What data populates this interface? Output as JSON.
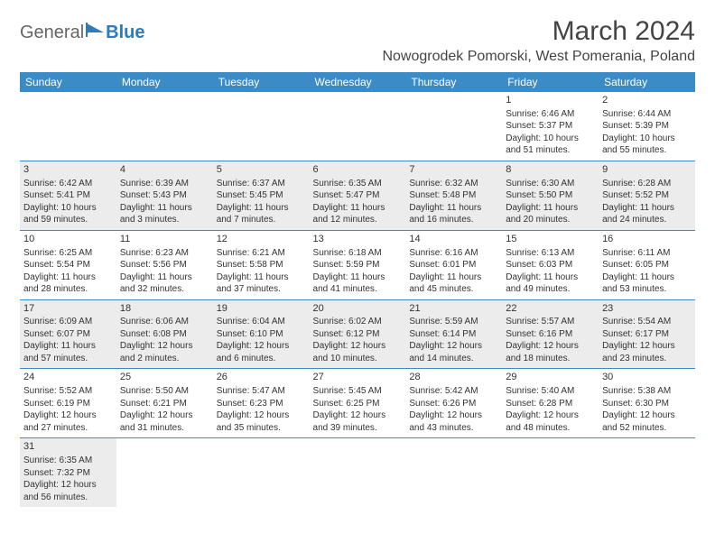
{
  "brand": {
    "part1": "General",
    "part2": "Blue"
  },
  "title": "March 2024",
  "location": "Nowogrodek Pomorski, West Pomerania, Poland",
  "colors": {
    "header_bg": "#3b8bc6",
    "header_text": "#ffffff",
    "row_shade": "#ececec",
    "cell_border": "#3b8bc6",
    "text": "#333333",
    "logo_blue": "#2b7bbf"
  },
  "weekdays": [
    "Sunday",
    "Monday",
    "Tuesday",
    "Wednesday",
    "Thursday",
    "Friday",
    "Saturday"
  ],
  "weeks": [
    {
      "shaded": false,
      "days": [
        null,
        null,
        null,
        null,
        null,
        {
          "n": "1",
          "sr": "Sunrise: 6:46 AM",
          "ss": "Sunset: 5:37 PM",
          "d1": "Daylight: 10 hours",
          "d2": "and 51 minutes."
        },
        {
          "n": "2",
          "sr": "Sunrise: 6:44 AM",
          "ss": "Sunset: 5:39 PM",
          "d1": "Daylight: 10 hours",
          "d2": "and 55 minutes."
        }
      ]
    },
    {
      "shaded": true,
      "days": [
        {
          "n": "3",
          "sr": "Sunrise: 6:42 AM",
          "ss": "Sunset: 5:41 PM",
          "d1": "Daylight: 10 hours",
          "d2": "and 59 minutes."
        },
        {
          "n": "4",
          "sr": "Sunrise: 6:39 AM",
          "ss": "Sunset: 5:43 PM",
          "d1": "Daylight: 11 hours",
          "d2": "and 3 minutes."
        },
        {
          "n": "5",
          "sr": "Sunrise: 6:37 AM",
          "ss": "Sunset: 5:45 PM",
          "d1": "Daylight: 11 hours",
          "d2": "and 7 minutes."
        },
        {
          "n": "6",
          "sr": "Sunrise: 6:35 AM",
          "ss": "Sunset: 5:47 PM",
          "d1": "Daylight: 11 hours",
          "d2": "and 12 minutes."
        },
        {
          "n": "7",
          "sr": "Sunrise: 6:32 AM",
          "ss": "Sunset: 5:48 PM",
          "d1": "Daylight: 11 hours",
          "d2": "and 16 minutes."
        },
        {
          "n": "8",
          "sr": "Sunrise: 6:30 AM",
          "ss": "Sunset: 5:50 PM",
          "d1": "Daylight: 11 hours",
          "d2": "and 20 minutes."
        },
        {
          "n": "9",
          "sr": "Sunrise: 6:28 AM",
          "ss": "Sunset: 5:52 PM",
          "d1": "Daylight: 11 hours",
          "d2": "and 24 minutes."
        }
      ]
    },
    {
      "shaded": false,
      "days": [
        {
          "n": "10",
          "sr": "Sunrise: 6:25 AM",
          "ss": "Sunset: 5:54 PM",
          "d1": "Daylight: 11 hours",
          "d2": "and 28 minutes."
        },
        {
          "n": "11",
          "sr": "Sunrise: 6:23 AM",
          "ss": "Sunset: 5:56 PM",
          "d1": "Daylight: 11 hours",
          "d2": "and 32 minutes."
        },
        {
          "n": "12",
          "sr": "Sunrise: 6:21 AM",
          "ss": "Sunset: 5:58 PM",
          "d1": "Daylight: 11 hours",
          "d2": "and 37 minutes."
        },
        {
          "n": "13",
          "sr": "Sunrise: 6:18 AM",
          "ss": "Sunset: 5:59 PM",
          "d1": "Daylight: 11 hours",
          "d2": "and 41 minutes."
        },
        {
          "n": "14",
          "sr": "Sunrise: 6:16 AM",
          "ss": "Sunset: 6:01 PM",
          "d1": "Daylight: 11 hours",
          "d2": "and 45 minutes."
        },
        {
          "n": "15",
          "sr": "Sunrise: 6:13 AM",
          "ss": "Sunset: 6:03 PM",
          "d1": "Daylight: 11 hours",
          "d2": "and 49 minutes."
        },
        {
          "n": "16",
          "sr": "Sunrise: 6:11 AM",
          "ss": "Sunset: 6:05 PM",
          "d1": "Daylight: 11 hours",
          "d2": "and 53 minutes."
        }
      ]
    },
    {
      "shaded": true,
      "days": [
        {
          "n": "17",
          "sr": "Sunrise: 6:09 AM",
          "ss": "Sunset: 6:07 PM",
          "d1": "Daylight: 11 hours",
          "d2": "and 57 minutes."
        },
        {
          "n": "18",
          "sr": "Sunrise: 6:06 AM",
          "ss": "Sunset: 6:08 PM",
          "d1": "Daylight: 12 hours",
          "d2": "and 2 minutes."
        },
        {
          "n": "19",
          "sr": "Sunrise: 6:04 AM",
          "ss": "Sunset: 6:10 PM",
          "d1": "Daylight: 12 hours",
          "d2": "and 6 minutes."
        },
        {
          "n": "20",
          "sr": "Sunrise: 6:02 AM",
          "ss": "Sunset: 6:12 PM",
          "d1": "Daylight: 12 hours",
          "d2": "and 10 minutes."
        },
        {
          "n": "21",
          "sr": "Sunrise: 5:59 AM",
          "ss": "Sunset: 6:14 PM",
          "d1": "Daylight: 12 hours",
          "d2": "and 14 minutes."
        },
        {
          "n": "22",
          "sr": "Sunrise: 5:57 AM",
          "ss": "Sunset: 6:16 PM",
          "d1": "Daylight: 12 hours",
          "d2": "and 18 minutes."
        },
        {
          "n": "23",
          "sr": "Sunrise: 5:54 AM",
          "ss": "Sunset: 6:17 PM",
          "d1": "Daylight: 12 hours",
          "d2": "and 23 minutes."
        }
      ]
    },
    {
      "shaded": false,
      "days": [
        {
          "n": "24",
          "sr": "Sunrise: 5:52 AM",
          "ss": "Sunset: 6:19 PM",
          "d1": "Daylight: 12 hours",
          "d2": "and 27 minutes."
        },
        {
          "n": "25",
          "sr": "Sunrise: 5:50 AM",
          "ss": "Sunset: 6:21 PM",
          "d1": "Daylight: 12 hours",
          "d2": "and 31 minutes."
        },
        {
          "n": "26",
          "sr": "Sunrise: 5:47 AM",
          "ss": "Sunset: 6:23 PM",
          "d1": "Daylight: 12 hours",
          "d2": "and 35 minutes."
        },
        {
          "n": "27",
          "sr": "Sunrise: 5:45 AM",
          "ss": "Sunset: 6:25 PM",
          "d1": "Daylight: 12 hours",
          "d2": "and 39 minutes."
        },
        {
          "n": "28",
          "sr": "Sunrise: 5:42 AM",
          "ss": "Sunset: 6:26 PM",
          "d1": "Daylight: 12 hours",
          "d2": "and 43 minutes."
        },
        {
          "n": "29",
          "sr": "Sunrise: 5:40 AM",
          "ss": "Sunset: 6:28 PM",
          "d1": "Daylight: 12 hours",
          "d2": "and 48 minutes."
        },
        {
          "n": "30",
          "sr": "Sunrise: 5:38 AM",
          "ss": "Sunset: 6:30 PM",
          "d1": "Daylight: 12 hours",
          "d2": "and 52 minutes."
        }
      ]
    },
    {
      "shaded": true,
      "days": [
        {
          "n": "31",
          "sr": "Sunrise: 6:35 AM",
          "ss": "Sunset: 7:32 PM",
          "d1": "Daylight: 12 hours",
          "d2": "and 56 minutes."
        },
        null,
        null,
        null,
        null,
        null,
        null
      ]
    }
  ]
}
